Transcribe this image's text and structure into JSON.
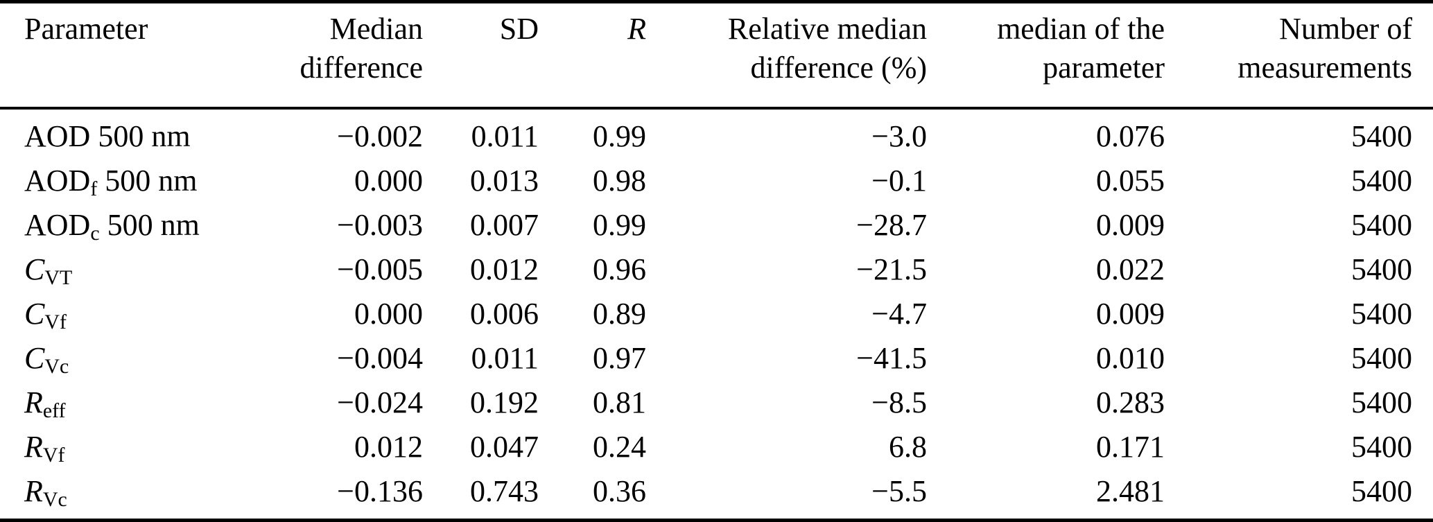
{
  "table": {
    "columns": [
      {
        "label": "Parameter"
      },
      {
        "label": "Median\ndifference"
      },
      {
        "label": "SD"
      },
      {
        "label": "R"
      },
      {
        "label": "Relative median\ndifference (%)"
      },
      {
        "label": "median of the\nparameter"
      },
      {
        "label": "Number of\nmeasurements"
      }
    ],
    "rows": [
      {
        "parameter": [
          {
            "t": "AOD 500 nm"
          }
        ],
        "values": [
          "−0.002",
          "0.011",
          "0.99",
          "−3.0",
          "0.076",
          "5400"
        ]
      },
      {
        "parameter": [
          {
            "t": "AOD"
          },
          {
            "t": "f",
            "sub": true
          },
          {
            "t": " 500 nm"
          }
        ],
        "values": [
          "0.000",
          "0.013",
          "0.98",
          "−0.1",
          "0.055",
          "5400"
        ]
      },
      {
        "parameter": [
          {
            "t": "AOD"
          },
          {
            "t": "c",
            "sub": true
          },
          {
            "t": " 500 nm"
          }
        ],
        "values": [
          "−0.003",
          "0.007",
          "0.99",
          "−28.7",
          "0.009",
          "5400"
        ]
      },
      {
        "parameter": [
          {
            "t": "C",
            "italic": true
          },
          {
            "t": "VT",
            "sub": true
          }
        ],
        "values": [
          "−0.005",
          "0.012",
          "0.96",
          "−21.5",
          "0.022",
          "5400"
        ]
      },
      {
        "parameter": [
          {
            "t": "C",
            "italic": true
          },
          {
            "t": "Vf",
            "sub": true
          }
        ],
        "values": [
          "0.000",
          "0.006",
          "0.89",
          "−4.7",
          "0.009",
          "5400"
        ]
      },
      {
        "parameter": [
          {
            "t": "C",
            "italic": true
          },
          {
            "t": "Vc",
            "sub": true
          }
        ],
        "values": [
          "−0.004",
          "0.011",
          "0.97",
          "−41.5",
          "0.010",
          "5400"
        ]
      },
      {
        "parameter": [
          {
            "t": "R",
            "italic": true
          },
          {
            "t": "eff",
            "sub": true
          }
        ],
        "values": [
          "−0.024",
          "0.192",
          "0.81",
          "−8.5",
          "0.283",
          "5400"
        ]
      },
      {
        "parameter": [
          {
            "t": "R",
            "italic": true
          },
          {
            "t": "Vf",
            "sub": true
          }
        ],
        "values": [
          "0.012",
          "0.047",
          "0.24",
          "6.8",
          "0.171",
          "5400"
        ]
      },
      {
        "parameter": [
          {
            "t": "R",
            "italic": true
          },
          {
            "t": "Vc",
            "sub": true
          }
        ],
        "values": [
          "−0.136",
          "0.743",
          "0.36",
          "−5.5",
          "2.481",
          "5400"
        ]
      }
    ]
  }
}
